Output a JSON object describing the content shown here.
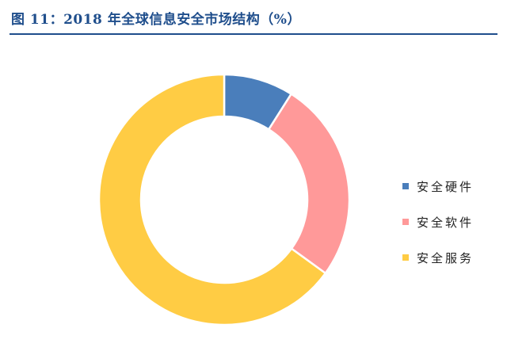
{
  "title": "图 11：2018 年全球信息安全市场结构（%）",
  "chart_data": {
    "type": "pie",
    "donut": true,
    "categories": [
      "安全硬件",
      "安全软件",
      "安全服务"
    ],
    "values": [
      9,
      26,
      65
    ],
    "colors": [
      "#4a7ebb",
      "#ff9999",
      "#ffcc44"
    ],
    "legend_position": "right"
  }
}
